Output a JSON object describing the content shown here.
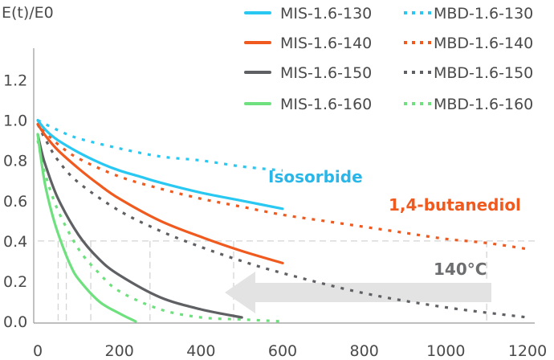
{
  "chart_data": {
    "type": "line",
    "ylabel": "E(t)/E0",
    "xlabel": "",
    "xlim": [
      0,
      1200
    ],
    "ylim": [
      0,
      1.3
    ],
    "xticks": [
      "0",
      "200",
      "400",
      "600",
      "800",
      "1000",
      "1200"
    ],
    "yticks": [
      "0.0",
      "0.2",
      "0.4",
      "0.6",
      "0.8",
      "1.0",
      "1.2"
    ],
    "legend_position": "top-right",
    "grid": false,
    "reference_level": 0.4,
    "crossing_x": [
      50,
      70,
      130,
      275,
      480,
      1100
    ],
    "annotations": {
      "isosorbide": "Isosorbide",
      "butanediol": "1,4-butanediol",
      "temp": "140°C"
    },
    "series": [
      {
        "name": "MIS-1.6-130",
        "color": "#29c8f2",
        "style": "solid",
        "x": [
          0,
          20,
          50,
          100,
          150,
          200,
          250,
          300,
          400,
          500,
          600
        ],
        "y": [
          1.0,
          0.95,
          0.9,
          0.84,
          0.79,
          0.75,
          0.72,
          0.69,
          0.64,
          0.6,
          0.56
        ]
      },
      {
        "name": "MBD-1.6-130",
        "color": "#29c8f2",
        "style": "dotted",
        "x": [
          0,
          50,
          100,
          200,
          300,
          400,
          500,
          600
        ],
        "y": [
          1.0,
          0.95,
          0.91,
          0.86,
          0.82,
          0.8,
          0.77,
          0.75
        ]
      },
      {
        "name": "MIS-1.6-140",
        "color": "#f05a1e",
        "style": "solid",
        "x": [
          0,
          20,
          50,
          100,
          150,
          200,
          300,
          400,
          500,
          600
        ],
        "y": [
          0.98,
          0.92,
          0.85,
          0.76,
          0.68,
          0.61,
          0.5,
          0.42,
          0.35,
          0.29
        ]
      },
      {
        "name": "MBD-1.6-140",
        "color": "#f05a1e",
        "style": "dotted",
        "x": [
          0,
          20,
          50,
          100,
          200,
          300,
          400,
          500,
          600,
          700,
          800,
          900,
          1000,
          1100,
          1200
        ],
        "y": [
          1.0,
          0.94,
          0.88,
          0.81,
          0.72,
          0.66,
          0.61,
          0.57,
          0.53,
          0.5,
          0.47,
          0.44,
          0.41,
          0.39,
          0.36
        ]
      },
      {
        "name": "MIS-1.6-150",
        "color": "#5f6063",
        "style": "solid",
        "x": [
          0,
          10,
          20,
          50,
          100,
          150,
          200,
          300,
          400,
          500
        ],
        "y": [
          0.93,
          0.84,
          0.77,
          0.61,
          0.43,
          0.31,
          0.23,
          0.12,
          0.06,
          0.02
        ]
      },
      {
        "name": "MBD-1.6-150",
        "color": "#5f6063",
        "style": "dotted",
        "x": [
          0,
          20,
          50,
          100,
          200,
          300,
          400,
          500,
          600,
          800,
          1000,
          1200
        ],
        "y": [
          0.98,
          0.9,
          0.8,
          0.69,
          0.55,
          0.45,
          0.37,
          0.3,
          0.24,
          0.14,
          0.07,
          0.02
        ]
      },
      {
        "name": "MIS-1.6-160",
        "color": "#6ee07e",
        "style": "solid",
        "x": [
          0,
          10,
          20,
          40,
          60,
          80,
          100,
          150,
          200,
          240
        ],
        "y": [
          0.93,
          0.78,
          0.66,
          0.5,
          0.38,
          0.28,
          0.21,
          0.1,
          0.04,
          0.0
        ]
      },
      {
        "name": "MBD-1.6-160",
        "color": "#6ee07e",
        "style": "dotted",
        "x": [
          0,
          10,
          20,
          50,
          100,
          150,
          200,
          300,
          400,
          500,
          600
        ],
        "y": [
          0.9,
          0.8,
          0.72,
          0.55,
          0.36,
          0.24,
          0.15,
          0.06,
          0.02,
          0.01,
          0.0
        ]
      }
    ]
  }
}
